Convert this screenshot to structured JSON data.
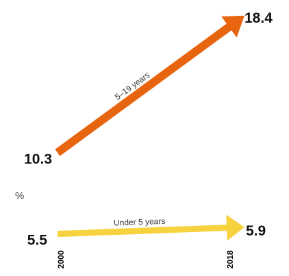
{
  "chart_data": {
    "type": "line",
    "x": [
      "2000",
      "2018"
    ],
    "unit": "%",
    "series": [
      {
        "name": "5–19 years",
        "values": [
          10.3,
          18.4
        ],
        "value_labels": [
          "10.3",
          "18.4"
        ],
        "color": "#E8650F"
      },
      {
        "name": "Under 5 years",
        "values": [
          5.5,
          5.9
        ],
        "value_labels": [
          "5.5",
          "5.9"
        ],
        "color": "#F7D23F"
      }
    ],
    "grid": false,
    "legend": "none"
  }
}
